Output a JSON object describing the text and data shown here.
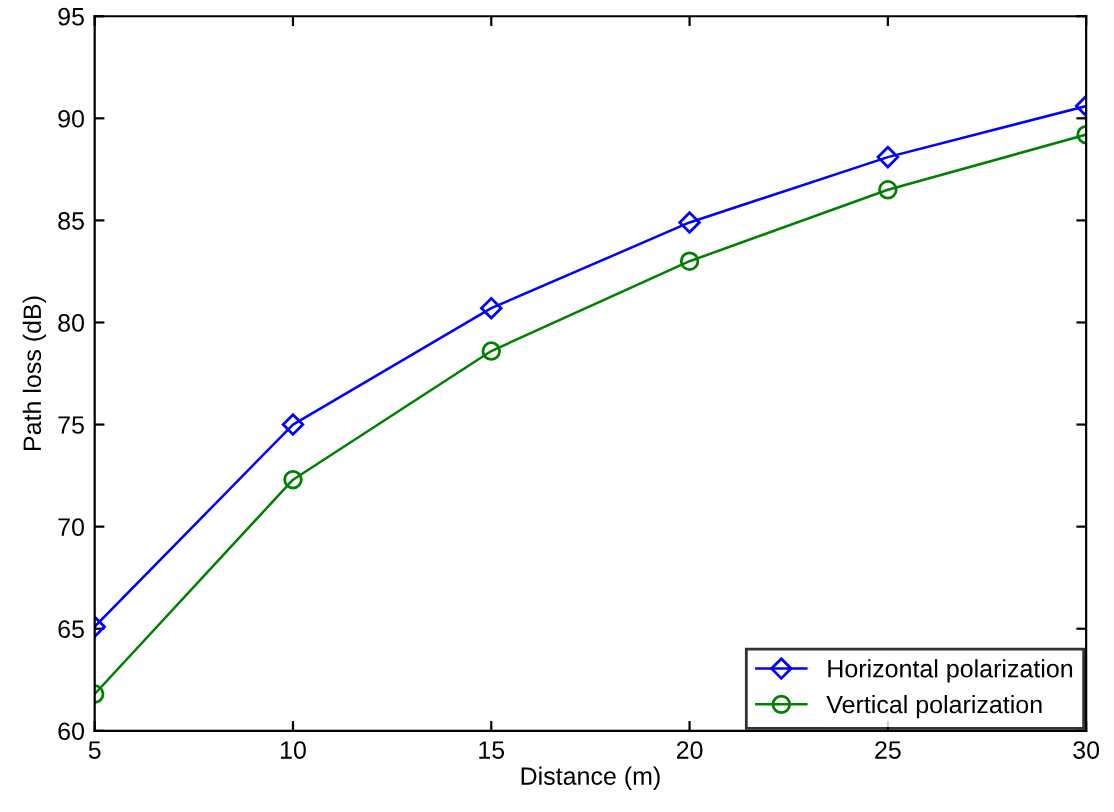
{
  "chart_data": {
    "type": "line",
    "xlabel": "Distance (m)",
    "ylabel": "Path loss (dB)",
    "x": [
      5,
      10,
      15,
      20,
      25,
      30
    ],
    "series": [
      {
        "name": "Horizontal polarization",
        "color": "#0000ff",
        "marker": "diamond",
        "values": [
          65.1,
          75.0,
          80.7,
          84.9,
          88.1,
          90.6
        ]
      },
      {
        "name": "Vertical polarization",
        "color": "#008000",
        "marker": "circle",
        "values": [
          61.8,
          72.3,
          78.6,
          83.0,
          86.5,
          89.2
        ]
      }
    ],
    "xlim": [
      5,
      30
    ],
    "xticks": [
      5,
      10,
      15,
      20,
      25,
      30
    ],
    "ylim": [
      60,
      95
    ],
    "yticks": [
      60,
      65,
      70,
      75,
      80,
      85,
      90,
      95
    ],
    "grid": false,
    "legend": "bottom right",
    "line_style": "solid"
  }
}
